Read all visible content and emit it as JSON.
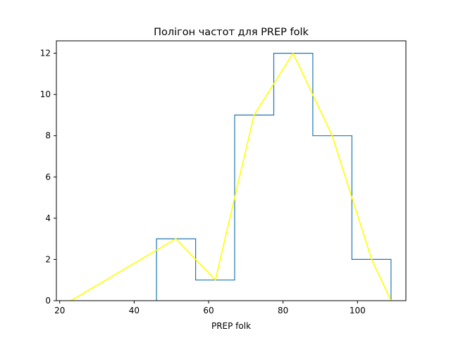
{
  "chart_data": {
    "type": "line",
    "title": "Полігон частот для PREP folk",
    "xlabel": "PREP folk",
    "ylabel": "",
    "xlim": [
      19.1,
      113.0
    ],
    "ylim": [
      0,
      12.6
    ],
    "xticks": [
      20,
      40,
      60,
      80,
      100
    ],
    "yticks": [
      0,
      2,
      4,
      6,
      8,
      10,
      12
    ],
    "grid": false,
    "legend": "none",
    "histogram": {
      "edges": [
        46.0,
        56.5,
        67.0,
        77.5,
        88.0,
        98.5,
        109.0
      ],
      "counts": [
        3,
        1,
        9,
        12,
        8,
        2
      ],
      "color": "#1f77b4"
    },
    "polygon": {
      "x": [
        23.0,
        51.2,
        61.8,
        72.2,
        82.7,
        93.2,
        103.8,
        109.0
      ],
      "y": [
        0,
        3,
        1,
        9,
        12,
        8,
        2,
        0
      ],
      "color": "#ffff00"
    }
  }
}
